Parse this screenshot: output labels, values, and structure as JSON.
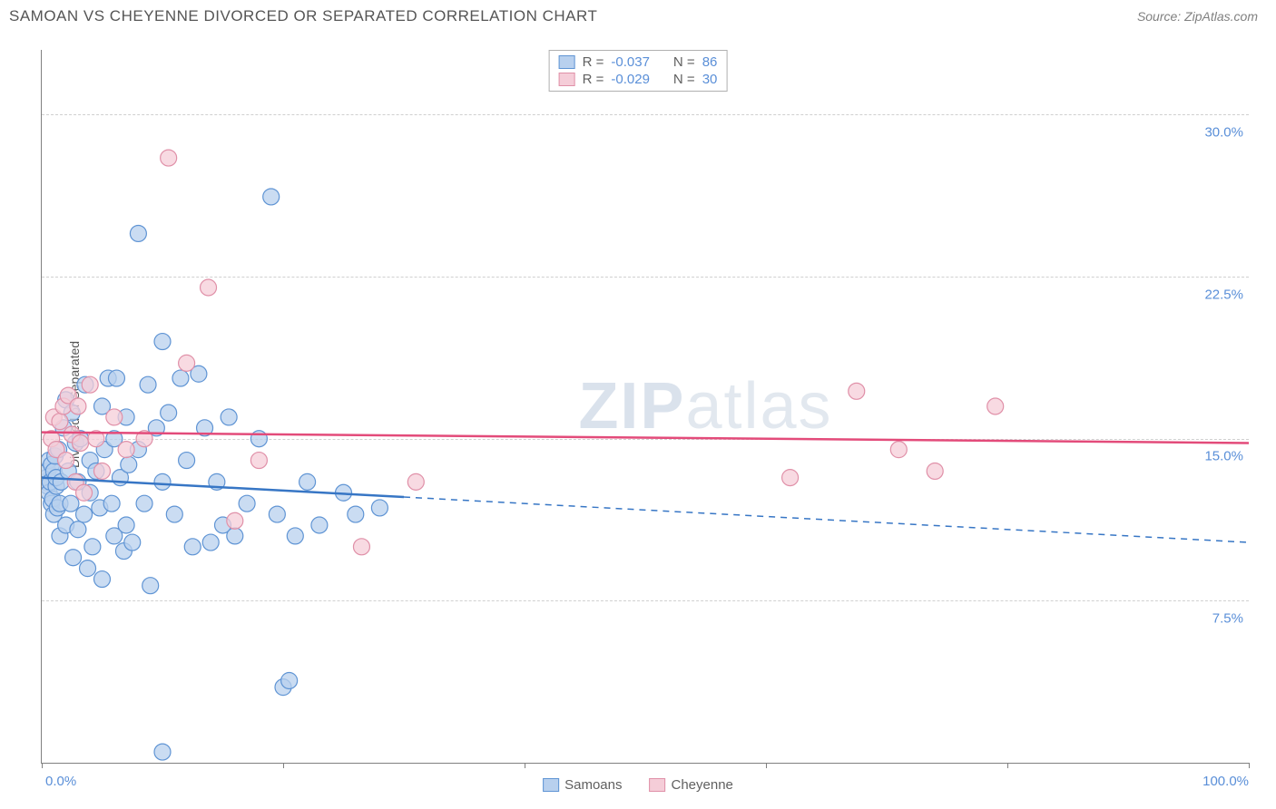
{
  "title": "SAMOAN VS CHEYENNE DIVORCED OR SEPARATED CORRELATION CHART",
  "source": "Source: ZipAtlas.com",
  "watermark_bold": "ZIP",
  "watermark_rest": "atlas",
  "ylabel": "Divorced or Separated",
  "xaxis": {
    "min_label": "0.0%",
    "max_label": "100.0%",
    "min": 0,
    "max": 100,
    "tick_positions": [
      0,
      20,
      40,
      60,
      80,
      100
    ]
  },
  "yaxis": {
    "min": 0,
    "max": 33,
    "gridlines": [
      {
        "value": 7.5,
        "label": "7.5%"
      },
      {
        "value": 15.0,
        "label": "15.0%"
      },
      {
        "value": 22.5,
        "label": "22.5%"
      },
      {
        "value": 30.0,
        "label": "30.0%"
      }
    ]
  },
  "series": [
    {
      "name": "Samoans",
      "fill": "#b8d0ee",
      "stroke": "#5f94d4",
      "line_fill": "#3776c5",
      "r_label": "R =",
      "r_value": "-0.037",
      "n_label": "N =",
      "n_value": "86",
      "regression": {
        "y_at_0": 13.2,
        "y_at_100": 10.2,
        "solid_until_x": 30
      },
      "points": [
        [
          0.3,
          13.0
        ],
        [
          0.4,
          13.2
        ],
        [
          0.5,
          12.8
        ],
        [
          0.5,
          13.5
        ],
        [
          0.6,
          12.5
        ],
        [
          0.6,
          14.0
        ],
        [
          0.7,
          13.0
        ],
        [
          0.8,
          12.0
        ],
        [
          0.8,
          13.8
        ],
        [
          0.9,
          12.2
        ],
        [
          1.0,
          13.5
        ],
        [
          1.0,
          11.5
        ],
        [
          1.1,
          14.2
        ],
        [
          1.2,
          12.8
        ],
        [
          1.2,
          13.2
        ],
        [
          1.3,
          11.8
        ],
        [
          1.4,
          14.5
        ],
        [
          1.5,
          12.0
        ],
        [
          1.5,
          10.5
        ],
        [
          1.6,
          13.0
        ],
        [
          1.8,
          15.5
        ],
        [
          2.0,
          11.0
        ],
        [
          2.0,
          16.8
        ],
        [
          2.2,
          13.5
        ],
        [
          2.4,
          12.0
        ],
        [
          2.5,
          16.2
        ],
        [
          2.6,
          9.5
        ],
        [
          2.8,
          14.8
        ],
        [
          3.0,
          10.8
        ],
        [
          3.0,
          13.0
        ],
        [
          3.2,
          15.0
        ],
        [
          3.5,
          11.5
        ],
        [
          3.6,
          17.5
        ],
        [
          3.8,
          9.0
        ],
        [
          4.0,
          12.5
        ],
        [
          4.0,
          14.0
        ],
        [
          4.2,
          10.0
        ],
        [
          4.5,
          13.5
        ],
        [
          4.8,
          11.8
        ],
        [
          5.0,
          16.5
        ],
        [
          5.0,
          8.5
        ],
        [
          5.2,
          14.5
        ],
        [
          5.5,
          17.8
        ],
        [
          5.8,
          12.0
        ],
        [
          6.0,
          10.5
        ],
        [
          6.0,
          15.0
        ],
        [
          6.2,
          17.8
        ],
        [
          6.5,
          13.2
        ],
        [
          6.8,
          9.8
        ],
        [
          7.0,
          16.0
        ],
        [
          7.0,
          11.0
        ],
        [
          7.2,
          13.8
        ],
        [
          7.5,
          10.2
        ],
        [
          8.0,
          14.5
        ],
        [
          8.0,
          24.5
        ],
        [
          8.5,
          12.0
        ],
        [
          8.8,
          17.5
        ],
        [
          9.0,
          8.2
        ],
        [
          9.5,
          15.5
        ],
        [
          10.0,
          13.0
        ],
        [
          10.0,
          19.5
        ],
        [
          10.5,
          16.2
        ],
        [
          11.0,
          11.5
        ],
        [
          11.5,
          17.8
        ],
        [
          12.0,
          14.0
        ],
        [
          12.5,
          10.0
        ],
        [
          13.0,
          18.0
        ],
        [
          13.5,
          15.5
        ],
        [
          14.0,
          10.2
        ],
        [
          14.5,
          13.0
        ],
        [
          15.0,
          11.0
        ],
        [
          15.5,
          16.0
        ],
        [
          16.0,
          10.5
        ],
        [
          17.0,
          12.0
        ],
        [
          18.0,
          15.0
        ],
        [
          19.0,
          26.2
        ],
        [
          19.5,
          11.5
        ],
        [
          20.0,
          3.5
        ],
        [
          20.5,
          3.8
        ],
        [
          21.0,
          10.5
        ],
        [
          22.0,
          13.0
        ],
        [
          23.0,
          11.0
        ],
        [
          25.0,
          12.5
        ],
        [
          26.0,
          11.5
        ],
        [
          10.0,
          0.5
        ],
        [
          28.0,
          11.8
        ]
      ]
    },
    {
      "name": "Cheyenne",
      "fill": "#f5cdd8",
      "stroke": "#e090a8",
      "line_fill": "#e34b7a",
      "r_label": "R =",
      "r_value": "-0.029",
      "n_label": "N =",
      "n_value": "30",
      "regression": {
        "y_at_0": 15.3,
        "y_at_100": 14.8,
        "solid_until_x": 100
      },
      "points": [
        [
          0.8,
          15.0
        ],
        [
          1.0,
          16.0
        ],
        [
          1.2,
          14.5
        ],
        [
          1.5,
          15.8
        ],
        [
          1.8,
          16.5
        ],
        [
          2.0,
          14.0
        ],
        [
          2.2,
          17.0
        ],
        [
          2.5,
          15.2
        ],
        [
          2.8,
          13.0
        ],
        [
          3.0,
          16.5
        ],
        [
          3.2,
          14.8
        ],
        [
          3.5,
          12.5
        ],
        [
          4.0,
          17.5
        ],
        [
          4.5,
          15.0
        ],
        [
          5.0,
          13.5
        ],
        [
          6.0,
          16.0
        ],
        [
          7.0,
          14.5
        ],
        [
          8.5,
          15.0
        ],
        [
          10.5,
          28.0
        ],
        [
          12.0,
          18.5
        ],
        [
          13.8,
          22.0
        ],
        [
          16.0,
          11.2
        ],
        [
          18.0,
          14.0
        ],
        [
          26.5,
          10.0
        ],
        [
          31.0,
          13.0
        ],
        [
          62.0,
          13.2
        ],
        [
          67.5,
          17.2
        ],
        [
          71.0,
          14.5
        ],
        [
          74.0,
          13.5
        ],
        [
          79.0,
          16.5
        ]
      ]
    }
  ],
  "colors": {
    "title": "#555555",
    "source": "#808080",
    "axis": "#808080",
    "grid": "#d0d0d0",
    "tick_label": "#5a8fd8",
    "watermark": "#dae2ec",
    "legend_border": "#b0b0b0"
  },
  "marker_radius": 9,
  "marker_stroke_width": 1.2,
  "line_width": 2.5,
  "chart_bg": "#ffffff"
}
